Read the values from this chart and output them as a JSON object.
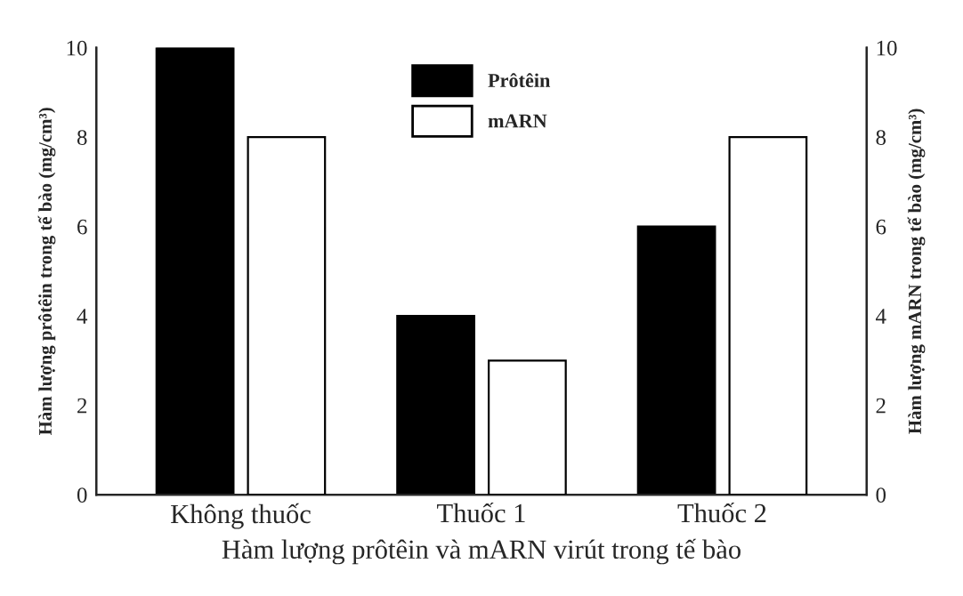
{
  "chart_data": {
    "type": "bar",
    "xlabel": "Hàm lượng prôtêin và mARN virút trong tế bào",
    "ylabel": "Hàm lượng prôtêin trong tế bào (mg/cm³)",
    "y2label": "Hàm lượng mARN trong tế bào (mg/cm³)",
    "categories": [
      "Không thuốc",
      "Thuốc 1",
      "Thuốc 2"
    ],
    "series": [
      {
        "name": "Prôtêin",
        "color": "#000000",
        "values": [
          10,
          4,
          6
        ]
      },
      {
        "name": "mARN",
        "color": "#ffffff",
        "values": [
          8,
          3,
          8
        ],
        "axis": "y2"
      }
    ],
    "ylim": [
      0,
      10
    ],
    "yticks": [
      0,
      2,
      4,
      6,
      8,
      10
    ],
    "y2lim": [
      0,
      10
    ],
    "y2ticks": [
      0,
      2,
      4,
      6,
      8,
      10
    ],
    "grid": false,
    "legend": "top"
  }
}
